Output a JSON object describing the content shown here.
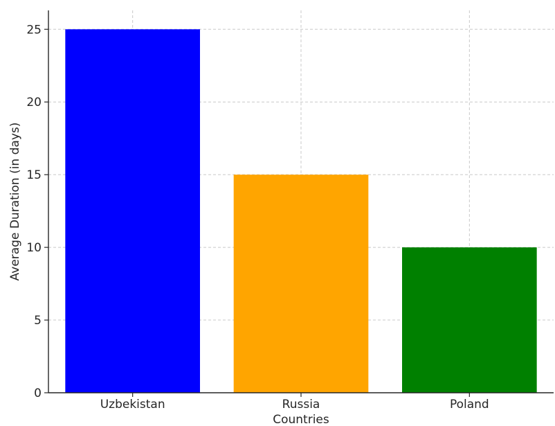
{
  "chart_data": {
    "type": "bar",
    "title": "",
    "xlabel": "Countries",
    "ylabel": "Average Duration (in days)",
    "categories": [
      "Uzbekistan",
      "Russia",
      "Poland"
    ],
    "values": [
      25,
      15,
      10
    ],
    "colors": [
      "#0000ff",
      "#ffa500",
      "#008000"
    ],
    "ylim": [
      0,
      26.3
    ],
    "yticks": [
      0,
      5,
      10,
      15,
      20,
      25
    ],
    "grid": true,
    "legend": "none"
  }
}
